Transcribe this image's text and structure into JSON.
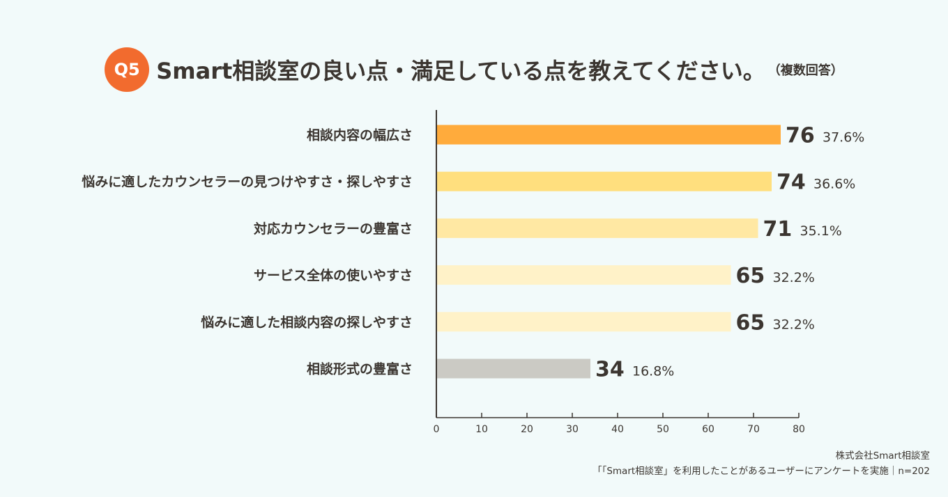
{
  "header": {
    "badge": "Q5",
    "title": "Smart相談室の良い点・満足している点を教えてください。",
    "note": "（複数回答）"
  },
  "chart_data": {
    "type": "bar",
    "orientation": "horizontal",
    "categories": [
      "相談内容の幅広さ",
      "悩みに適したカウンセラーの見つけやすさ・探しやすさ",
      "対応カウンセラーの豊富さ",
      "サービス全体の使いやすさ",
      "悩みに適した相談内容の探しやすさ",
      "相談形式の豊富さ"
    ],
    "values": [
      76,
      74,
      71,
      65,
      65,
      34
    ],
    "percent_labels": [
      "37.6%",
      "36.6%",
      "35.1%",
      "32.2%",
      "32.2%",
      "16.8%"
    ],
    "bar_colors": [
      "#ffab3c",
      "#ffdf7e",
      "#ffe8a3",
      "#fff2c8",
      "#fff2c8",
      "#cbcac4"
    ],
    "xlim": [
      0,
      80
    ],
    "xticks": [
      0,
      10,
      20,
      30,
      40,
      50,
      60,
      70,
      80
    ],
    "grid": false
  },
  "footer": {
    "company": "株式会社Smart相談室",
    "survey": "「「Smart相談室」を利用したことがあるユーザーにアンケートを実施｜n=202"
  }
}
